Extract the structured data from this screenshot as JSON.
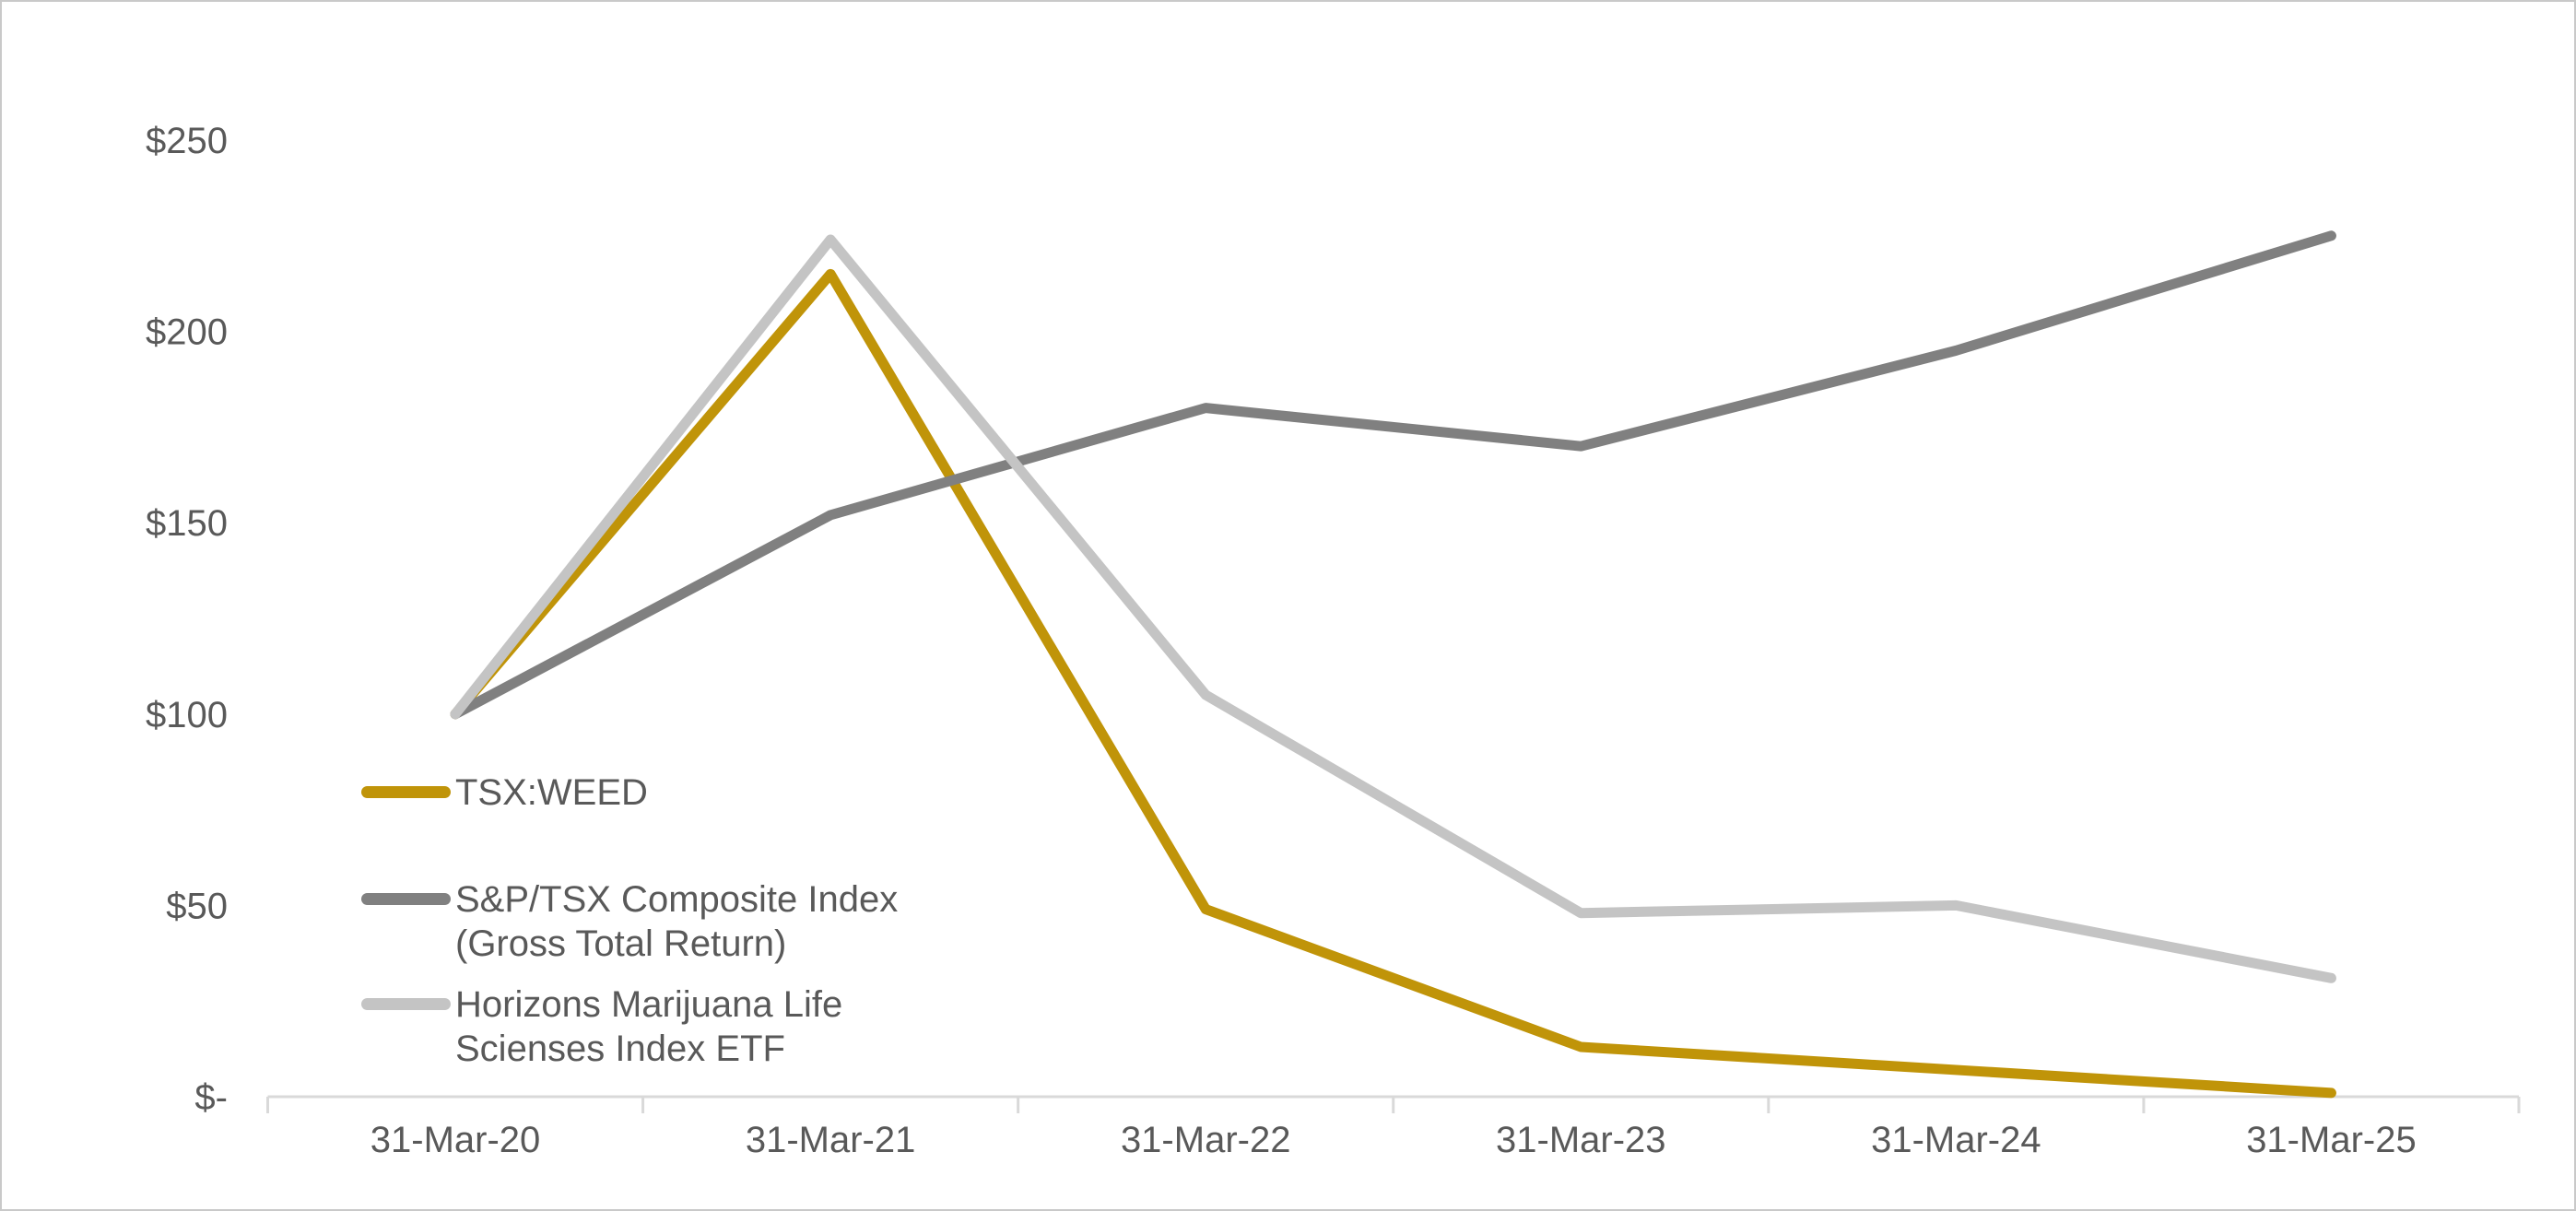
{
  "chart_data": {
    "type": "line",
    "title": "",
    "xlabel": "",
    "ylabel": "",
    "categories": [
      "31-Mar-20",
      "31-Mar-21",
      "31-Mar-22",
      "31-Mar-23",
      "31-Mar-24",
      "31-Mar-25"
    ],
    "series": [
      {
        "name": "TSX:WEED",
        "values": [
          100,
          215,
          49,
          13,
          7,
          1
        ],
        "color": "#c09409",
        "legend_lines": [
          "TSX:WEED"
        ]
      },
      {
        "name": "S&P/TSX Composite Index (Gross Total Return)",
        "values": [
          100,
          152,
          180,
          170,
          195,
          225
        ],
        "color": "#808080",
        "legend_lines": [
          "S&P/TSX Composite Index",
          "(Gross Total Return)"
        ]
      },
      {
        "name": "Horizons Marijuana Life Scienses Index ETF",
        "values": [
          100,
          224,
          105,
          48,
          50,
          31
        ],
        "color": "#c4c4c4",
        "legend_lines": [
          "Horizons Marijuana Life",
          "Scienses Index ETF"
        ]
      }
    ],
    "y_ticks": [
      {
        "value": 0,
        "label": "$-"
      },
      {
        "value": 50,
        "label": "$50"
      },
      {
        "value": 100,
        "label": "$100"
      },
      {
        "value": 150,
        "label": "$150"
      },
      {
        "value": 200,
        "label": "$200"
      },
      {
        "value": 250,
        "label": "$250"
      }
    ],
    "ylim": [
      0,
      250
    ],
    "grid": false,
    "legend_position": "inside-left",
    "axis_color": "#d9d9d9",
    "text_color": "#595959",
    "background_color": "#ffffff"
  }
}
